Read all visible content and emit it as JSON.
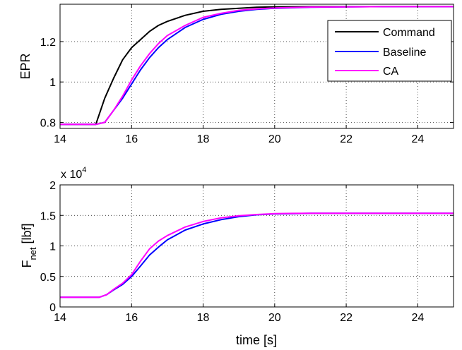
{
  "chart_data": [
    {
      "type": "line",
      "ylabel": "EPR",
      "xlim": [
        14,
        25
      ],
      "ylim": [
        0.77,
        1.385
      ],
      "xticks": [
        "14",
        "16",
        "18",
        "20",
        "22",
        "24"
      ],
      "yticks": [
        "0.8",
        "1",
        "1.2"
      ],
      "grid": true,
      "legend_position": "top-right",
      "series": [
        {
          "name": "Command",
          "color": "#000000",
          "x": [
            14,
            15,
            15.25,
            15.5,
            15.75,
            16,
            16.25,
            16.5,
            16.75,
            17,
            17.5,
            18,
            18.5,
            19,
            19.5,
            20,
            21,
            22,
            23,
            24,
            25
          ],
          "y": [
            0.79,
            0.79,
            0.92,
            1.02,
            1.11,
            1.17,
            1.21,
            1.25,
            1.28,
            1.3,
            1.33,
            1.35,
            1.36,
            1.365,
            1.37,
            1.372,
            1.373,
            1.373,
            1.373,
            1.373,
            1.373
          ]
        },
        {
          "name": "Baseline",
          "color": "#0000ff",
          "x": [
            14,
            15,
            15.25,
            15.5,
            15.75,
            16,
            16.25,
            16.5,
            16.75,
            17,
            17.5,
            18,
            18.5,
            19,
            19.5,
            20,
            21,
            22,
            23,
            24,
            25
          ],
          "y": [
            0.79,
            0.79,
            0.8,
            0.86,
            0.92,
            0.99,
            1.06,
            1.12,
            1.17,
            1.21,
            1.27,
            1.31,
            1.335,
            1.35,
            1.36,
            1.365,
            1.37,
            1.372,
            1.373,
            1.373,
            1.373
          ]
        },
        {
          "name": "CA",
          "color": "#ff00ff",
          "x": [
            14,
            15,
            15.25,
            15.5,
            15.75,
            16,
            16.25,
            16.5,
            16.75,
            17,
            17.5,
            18,
            18.5,
            19,
            19.5,
            20,
            21,
            22,
            23,
            24,
            25
          ],
          "y": [
            0.79,
            0.79,
            0.8,
            0.86,
            0.93,
            1.01,
            1.08,
            1.14,
            1.19,
            1.23,
            1.28,
            1.32,
            1.34,
            1.355,
            1.362,
            1.367,
            1.371,
            1.372,
            1.373,
            1.373,
            1.373
          ]
        }
      ]
    },
    {
      "type": "line",
      "ylabel_main": "F",
      "ylabel_sub": "net",
      "ylabel_unit": " [lbf]",
      "xlabel": "time [s]",
      "xlim": [
        14,
        25
      ],
      "ylim": [
        0,
        2
      ],
      "xticks": [
        "14",
        "16",
        "18",
        "20",
        "22",
        "24"
      ],
      "yticks": [
        "0",
        "0.5",
        "1",
        "1.5",
        "2"
      ],
      "multiplier_base": "x 10",
      "multiplier_exp": "4",
      "grid": true,
      "series": [
        {
          "color": "#0000ff",
          "x": [
            14,
            15.1,
            15.3,
            15.5,
            15.75,
            16,
            16.25,
            16.5,
            16.75,
            17,
            17.5,
            18,
            18.5,
            19,
            19.5,
            20,
            20.5,
            21,
            22,
            23,
            24,
            25
          ],
          "y": [
            0.16,
            0.16,
            0.2,
            0.28,
            0.37,
            0.5,
            0.67,
            0.85,
            0.98,
            1.1,
            1.26,
            1.36,
            1.43,
            1.48,
            1.51,
            1.525,
            1.53,
            1.535,
            1.535,
            1.535,
            1.535,
            1.535
          ]
        },
        {
          "color": "#ff00ff",
          "x": [
            14,
            15.1,
            15.3,
            15.5,
            15.75,
            16,
            16.25,
            16.5,
            16.75,
            17,
            17.5,
            18,
            18.5,
            19,
            19.5,
            20,
            20.5,
            21,
            22,
            23,
            24,
            25
          ],
          "y": [
            0.16,
            0.16,
            0.2,
            0.29,
            0.39,
            0.53,
            0.75,
            0.95,
            1.08,
            1.17,
            1.31,
            1.4,
            1.46,
            1.495,
            1.515,
            1.528,
            1.533,
            1.535,
            1.535,
            1.535,
            1.535,
            1.535
          ]
        }
      ]
    }
  ]
}
